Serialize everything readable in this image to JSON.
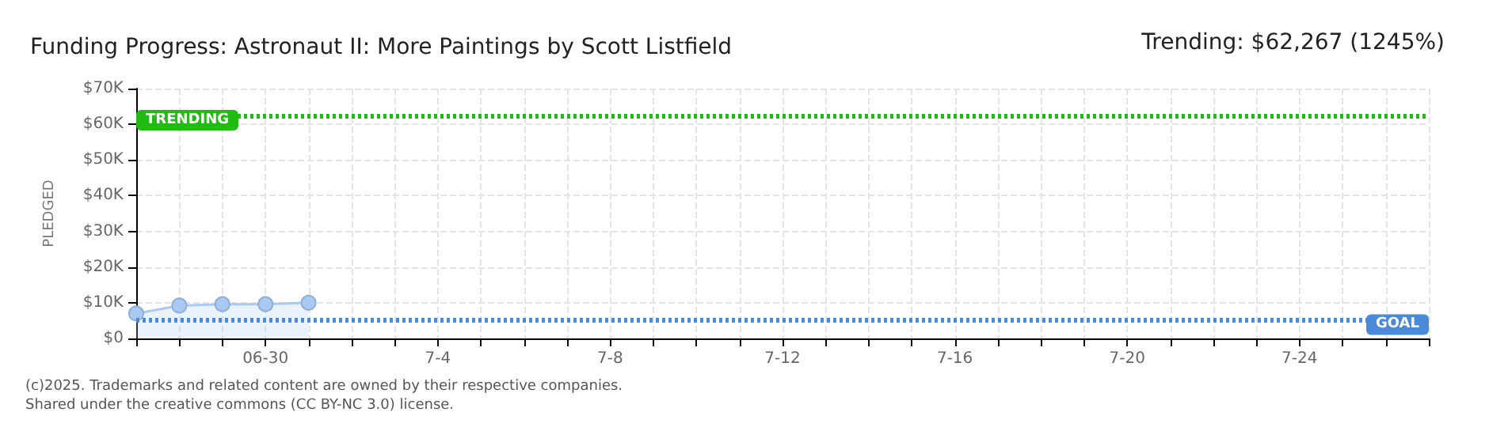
{
  "chart_data": {
    "type": "area",
    "title": "Funding Progress: Astronaut II: More Paintings by Scott Listfield",
    "annotations": [
      "Trending: $62,267 (1245%)",
      "(c)2025. Trademarks and related content are owned by their respective companies.",
      "Shared under the creative commons (CC BY-NC 3.0) license."
    ],
    "ylabel": "PLEDGED",
    "x": [
      "2025-06-27",
      "2025-06-28",
      "2025-06-29",
      "2025-06-30",
      "2025-07-01"
    ],
    "series": [
      {
        "color": "#a9c9f0",
        "values": [
          7000,
          9200,
          9600,
          9600,
          10000
        ]
      }
    ],
    "marker": "circle",
    "grid": true,
    "xlim": [
      "2025-06-27",
      "2025-07-27"
    ],
    "xticks": [
      {
        "value": "2025-06-27",
        "label": null
      },
      {
        "value": "2025-06-28",
        "label": null
      },
      {
        "value": "2025-06-29",
        "label": null
      },
      {
        "value": "2025-06-30",
        "label": "06-30"
      },
      {
        "value": "2025-07-01",
        "label": null
      },
      {
        "value": "2025-07-02",
        "label": null
      },
      {
        "value": "2025-07-03",
        "label": null
      },
      {
        "value": "2025-07-04",
        "label": "7-4"
      },
      {
        "value": "2025-07-05",
        "label": null
      },
      {
        "value": "2025-07-06",
        "label": null
      },
      {
        "value": "2025-07-07",
        "label": null
      },
      {
        "value": "2025-07-08",
        "label": "7-8"
      },
      {
        "value": "2025-07-09",
        "label": null
      },
      {
        "value": "2025-07-10",
        "label": null
      },
      {
        "value": "2025-07-11",
        "label": null
      },
      {
        "value": "2025-07-12",
        "label": "7-12"
      },
      {
        "value": "2025-07-13",
        "label": null
      },
      {
        "value": "2025-07-14",
        "label": null
      },
      {
        "value": "2025-07-15",
        "label": null
      },
      {
        "value": "2025-07-16",
        "label": "7-16"
      },
      {
        "value": "2025-07-17",
        "label": null
      },
      {
        "value": "2025-07-18",
        "label": null
      },
      {
        "value": "2025-07-19",
        "label": null
      },
      {
        "value": "2025-07-20",
        "label": "7-20"
      },
      {
        "value": "2025-07-21",
        "label": null
      },
      {
        "value": "2025-07-22",
        "label": null
      },
      {
        "value": "2025-07-23",
        "label": null
      },
      {
        "value": "2025-07-24",
        "label": "7-24"
      },
      {
        "value": "2025-07-25",
        "label": null
      },
      {
        "value": "2025-07-26",
        "label": null
      },
      {
        "value": "2025-07-27",
        "label": null
      }
    ],
    "ylim": [
      0,
      70000
    ],
    "yticks": [
      {
        "value": 0,
        "label": "$0"
      },
      {
        "value": 10000,
        "label": "$10K"
      },
      {
        "value": 20000,
        "label": "$20K"
      },
      {
        "value": 30000,
        "label": "$30K"
      },
      {
        "value": 40000,
        "label": "$40K"
      },
      {
        "value": 50000,
        "label": "$50K"
      },
      {
        "value": 60000,
        "label": "$60K"
      },
      {
        "value": 70000,
        "label": "$70K"
      }
    ],
    "ref_lines": [
      {
        "axis": "y",
        "value": 62267,
        "label": "TRENDING",
        "color": "#22bb11",
        "line_style": "dotted"
      },
      {
        "axis": "y",
        "value": 5000,
        "label": "GOAL",
        "color": "#4a8ad8",
        "line_style": "dotted"
      }
    ]
  }
}
